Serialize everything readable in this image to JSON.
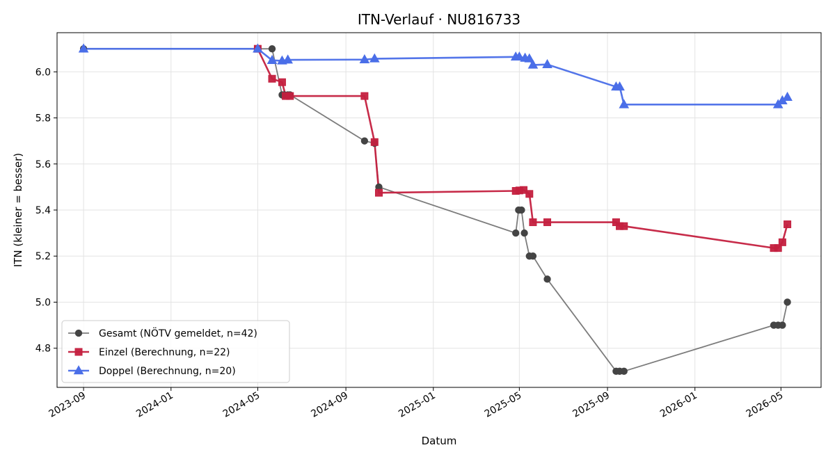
{
  "chart_data": {
    "type": "line",
    "title": "ITN-Verlauf · NU816733",
    "xlabel": "Datum",
    "ylabel": "ITN  (kleiner = besser)",
    "x_is_date": true,
    "xlim": [
      "2023-07-26",
      "2026-06-26"
    ],
    "ylim": [
      4.63,
      6.17
    ],
    "x_ticks": [
      "2023-09-01",
      "2024-01-01",
      "2024-05-01",
      "2024-09-01",
      "2025-01-01",
      "2025-05-01",
      "2025-09-01",
      "2026-01-01",
      "2026-05-01"
    ],
    "x_tick_labels": [
      "2023-09",
      "2024-01",
      "2024-05",
      "2024-09",
      "2025-01",
      "2025-05",
      "2025-09",
      "2026-01",
      "2026-05"
    ],
    "y_ticks": [
      4.8,
      5.0,
      5.2,
      5.4,
      5.6,
      5.8,
      6.0
    ],
    "y_tick_labels": [
      "4.8",
      "5.0",
      "5.2",
      "5.4",
      "5.6",
      "5.8",
      "6.0"
    ],
    "grid": true,
    "legend_position": "lower-left",
    "series": [
      {
        "name": "Gesamt (NÖTV gemeldet, n=42)",
        "color": "#444444",
        "marker": "circle",
        "points": [
          [
            "2023-09-01",
            6.1
          ],
          [
            "2024-05-01",
            6.1
          ],
          [
            "2024-05-21",
            6.1
          ],
          [
            "2024-06-04",
            5.9
          ],
          [
            "2024-06-07",
            5.9
          ],
          [
            "2024-06-12",
            5.9
          ],
          [
            "2024-06-15",
            5.9
          ],
          [
            "2024-09-27",
            5.7
          ],
          [
            "2024-10-11",
            5.69
          ],
          [
            "2024-10-17",
            5.5
          ],
          [
            "2025-04-26",
            5.3
          ],
          [
            "2025-04-30",
            5.4
          ],
          [
            "2025-05-04",
            5.4
          ],
          [
            "2025-05-08",
            5.3
          ],
          [
            "2025-05-15",
            5.2
          ],
          [
            "2025-05-20",
            5.2
          ],
          [
            "2025-06-09",
            5.1
          ],
          [
            "2025-09-13",
            4.7
          ],
          [
            "2025-09-18",
            4.7
          ],
          [
            "2025-09-24",
            4.7
          ],
          [
            "2026-04-21",
            4.9
          ],
          [
            "2026-04-27",
            4.9
          ],
          [
            "2026-05-03",
            4.9
          ],
          [
            "2026-05-10",
            5.0
          ]
        ]
      },
      {
        "name": "Einzel (Berechnung, n=22)",
        "color": "#c4203f",
        "marker": "square",
        "points": [
          [
            "2024-05-01",
            6.1
          ],
          [
            "2024-05-21",
            5.97
          ],
          [
            "2024-06-04",
            5.955
          ],
          [
            "2024-06-09",
            5.895
          ],
          [
            "2024-06-15",
            5.895
          ],
          [
            "2024-09-27",
            5.895
          ],
          [
            "2024-10-11",
            5.695
          ],
          [
            "2024-10-17",
            5.475
          ],
          [
            "2025-04-26",
            5.483
          ],
          [
            "2025-05-01",
            5.485
          ],
          [
            "2025-05-07",
            5.487
          ],
          [
            "2025-05-15",
            5.47
          ],
          [
            "2025-05-20",
            5.347
          ],
          [
            "2025-06-09",
            5.347
          ],
          [
            "2025-09-13",
            5.347
          ],
          [
            "2025-09-18",
            5.33
          ],
          [
            "2025-09-24",
            5.33
          ],
          [
            "2026-04-21",
            5.235
          ],
          [
            "2026-04-27",
            5.235
          ],
          [
            "2026-05-03",
            5.26
          ],
          [
            "2026-05-10",
            5.338
          ]
        ]
      },
      {
        "name": "Doppel (Berechnung, n=20)",
        "color": "#4a6ee8",
        "marker": "triangle",
        "points": [
          [
            "2023-09-01",
            6.1
          ],
          [
            "2024-05-01",
            6.1
          ],
          [
            "2024-05-21",
            6.05
          ],
          [
            "2024-06-04",
            6.048
          ],
          [
            "2024-06-12",
            6.052
          ],
          [
            "2024-09-27",
            6.053
          ],
          [
            "2024-10-11",
            6.057
          ],
          [
            "2025-04-26",
            6.065
          ],
          [
            "2025-05-01",
            6.065
          ],
          [
            "2025-05-09",
            6.06
          ],
          [
            "2025-05-15",
            6.057
          ],
          [
            "2025-05-20",
            6.03
          ],
          [
            "2025-06-09",
            6.032
          ],
          [
            "2025-09-13",
            5.935
          ],
          [
            "2025-09-18",
            5.935
          ],
          [
            "2025-09-24",
            5.858
          ],
          [
            "2026-04-27",
            5.858
          ],
          [
            "2026-05-03",
            5.875
          ],
          [
            "2026-05-10",
            5.89
          ]
        ]
      }
    ]
  }
}
